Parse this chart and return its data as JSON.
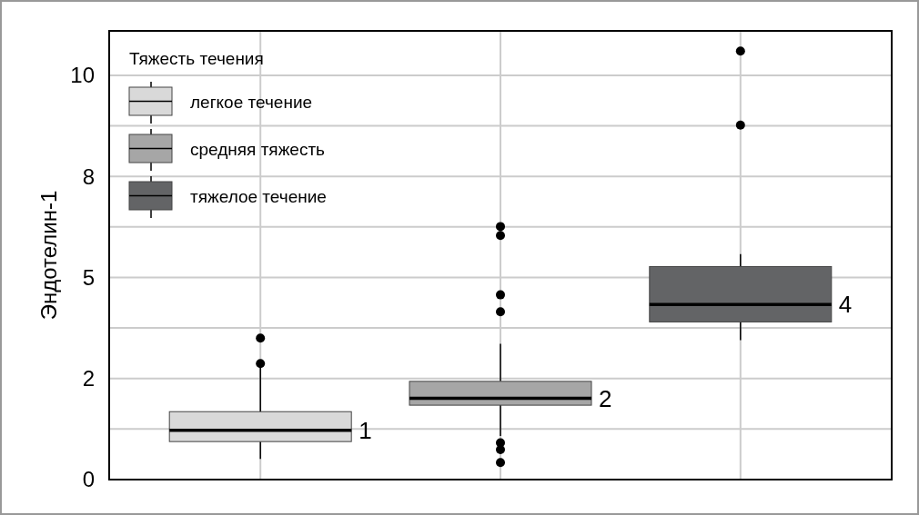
{
  "chart_data": {
    "type": "box",
    "ylabel": "Эндотелин-1",
    "legend_title": "Тяжесть течения",
    "legend": "top left",
    "grid": true,
    "categories": [
      null,
      null,
      null
    ],
    "ylim": [
      0,
      11.1
    ],
    "yticks": [
      0,
      {
        "value": 1.25,
        "label": null
      },
      {
        "value": 2.5,
        "label": "2"
      },
      {
        "value": 3.75,
        "label": null
      },
      5,
      {
        "value": 6.25,
        "label": null
      },
      {
        "value": 7.5,
        "label": "8"
      },
      {
        "value": 8.75,
        "label": null
      },
      10
    ],
    "series": [
      {
        "name": "легкое течение",
        "color": "#d9d9d9",
        "boxes": [
          {
            "low": 0.51,
            "q1": 0.94,
            "median": 1.22,
            "q3": 1.68,
            "high": 2.8,
            "outliers": [
              2.87,
              3.5
            ]
          },
          null,
          null
        ]
      },
      {
        "name": "средняя тяжесть",
        "color": "#a6a6a6",
        "boxes": [
          null,
          {
            "low": 1.08,
            "q1": 1.84,
            "median": 2.01,
            "q3": 2.43,
            "high": 3.36,
            "outliers": [
              0.42,
              0.74,
              0.91,
              4.15,
              4.57,
              6.04,
              6.26
            ]
          },
          null
        ]
      },
      {
        "name": "тяжелое течение",
        "color": "#636466",
        "boxes": [
          null,
          null,
          {
            "low": 3.45,
            "q1": 3.9,
            "median": 4.33,
            "q3": 5.27,
            "high": 5.58,
            "outliers": [
              8.77,
              10.6
            ]
          }
        ]
      }
    ],
    "annotations": [
      "1",
      "2",
      "4"
    ]
  }
}
